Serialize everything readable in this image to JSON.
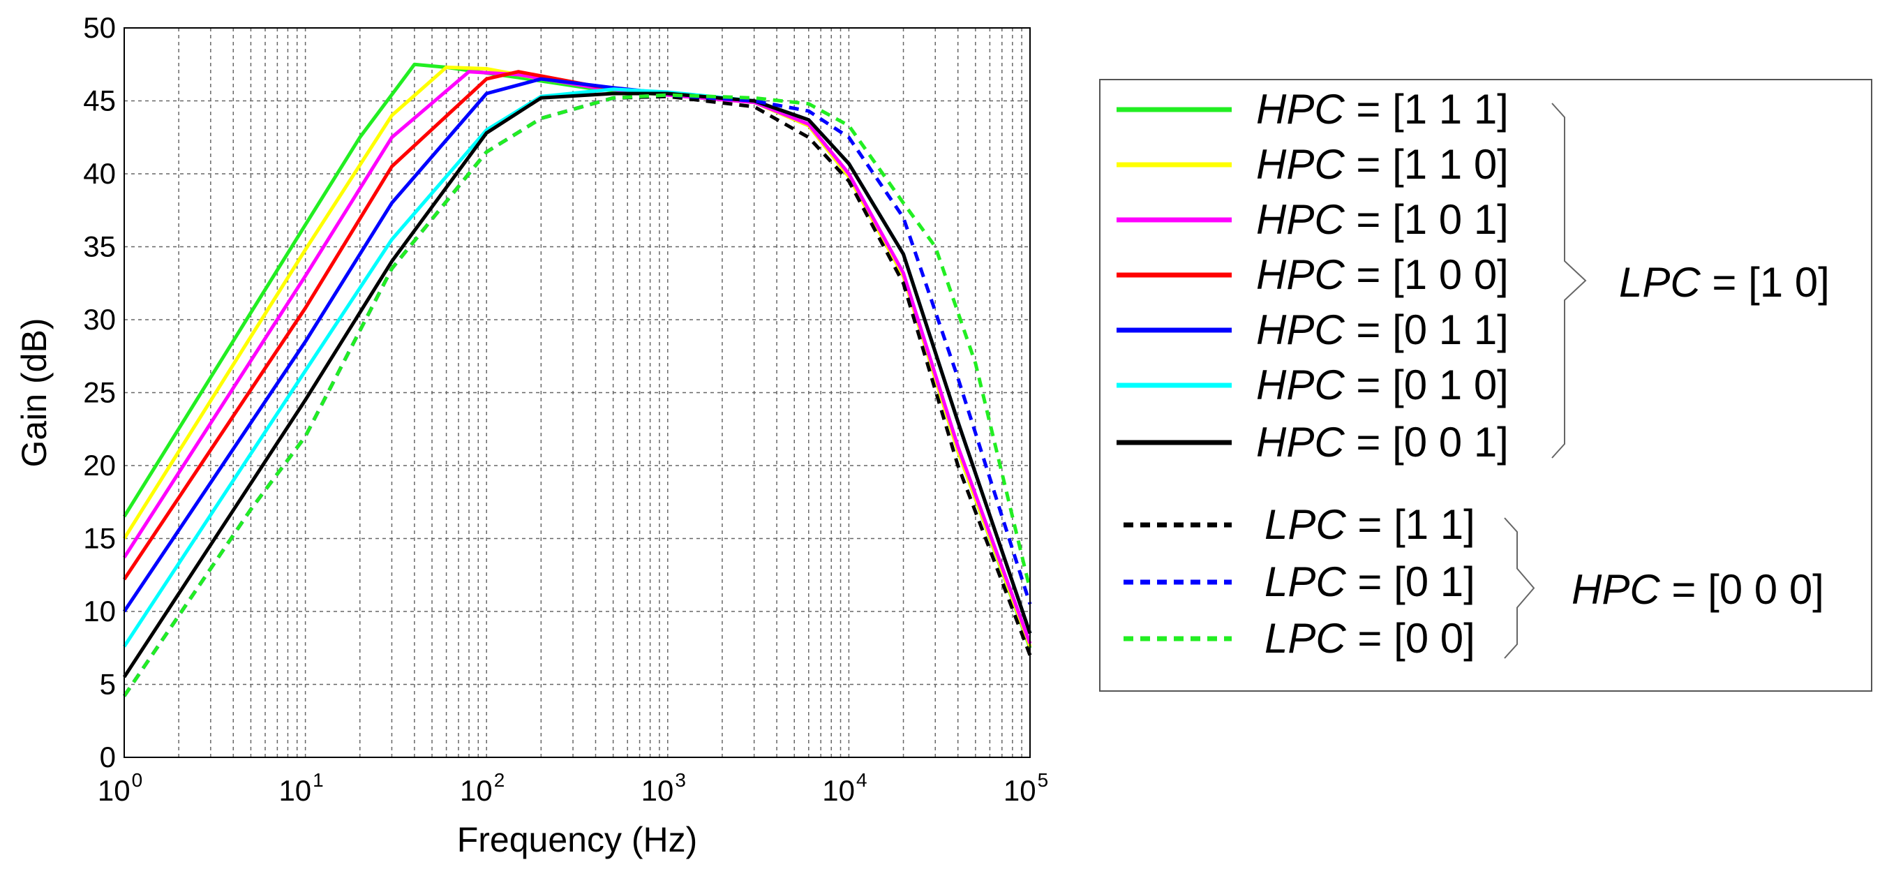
{
  "chart_data": {
    "type": "line",
    "xscale": "log",
    "xlim": [
      1,
      100000
    ],
    "ylim": [
      0,
      50
    ],
    "xlabel": "Frequency (Hz)",
    "ylabel": "Gain (dB)",
    "grid": true,
    "x_ticks": [
      {
        "base": "10",
        "exp": "0"
      },
      {
        "base": "10",
        "exp": "1"
      },
      {
        "base": "10",
        "exp": "2"
      },
      {
        "base": "10",
        "exp": "3"
      },
      {
        "base": "10",
        "exp": "4"
      },
      {
        "base": "10",
        "exp": "5"
      }
    ],
    "y_ticks": [
      0,
      5,
      10,
      15,
      20,
      25,
      30,
      35,
      40,
      45,
      50
    ],
    "series": [
      {
        "name": "HPC = [1 1 1]",
        "color": "#22ee22",
        "dash": "solid",
        "points": [
          [
            1,
            16.5
          ],
          [
            10,
            36.5
          ],
          [
            20,
            42.5
          ],
          [
            40,
            47.5
          ],
          [
            60,
            47.3
          ],
          [
            150,
            46.6
          ],
          [
            400,
            45.8
          ],
          [
            1000,
            45.4
          ],
          [
            3000,
            44.9
          ],
          [
            6000,
            43.3
          ],
          [
            10000,
            39.8
          ],
          [
            20000,
            33.0
          ],
          [
            40000,
            21.0
          ],
          [
            100000,
            7.5
          ]
        ]
      },
      {
        "name": "HPC = [1 1 0]",
        "color": "#ffff00",
        "dash": "solid",
        "points": [
          [
            1,
            15.0
          ],
          [
            10,
            34.8
          ],
          [
            30,
            44.0
          ],
          [
            60,
            47.3
          ],
          [
            100,
            47.2
          ],
          [
            200,
            46.5
          ],
          [
            500,
            45.8
          ],
          [
            1000,
            45.4
          ],
          [
            3000,
            44.9
          ],
          [
            6000,
            43.3
          ],
          [
            10000,
            39.8
          ],
          [
            20000,
            33.0
          ],
          [
            40000,
            21.0
          ],
          [
            100000,
            7.6
          ]
        ]
      },
      {
        "name": "HPC = [1 0 1]",
        "color": "#ff00ff",
        "dash": "solid",
        "points": [
          [
            1,
            13.7
          ],
          [
            10,
            33.0
          ],
          [
            30,
            42.5
          ],
          [
            80,
            47.0
          ],
          [
            150,
            46.8
          ],
          [
            400,
            45.9
          ],
          [
            1000,
            45.4
          ],
          [
            3000,
            44.9
          ],
          [
            6000,
            43.4
          ],
          [
            10000,
            40.0
          ],
          [
            20000,
            33.2
          ],
          [
            40000,
            21.3
          ],
          [
            100000,
            7.8
          ]
        ]
      },
      {
        "name": "HPC = [1 0 0]",
        "color": "#ff0000",
        "dash": "solid",
        "points": [
          [
            1,
            12.2
          ],
          [
            10,
            30.8
          ],
          [
            30,
            40.5
          ],
          [
            100,
            46.5
          ],
          [
            150,
            47.0
          ],
          [
            400,
            46.0
          ],
          [
            1000,
            45.5
          ],
          [
            3000,
            45.0
          ],
          [
            6000,
            43.7
          ],
          [
            10000,
            40.7
          ],
          [
            20000,
            34.5
          ],
          [
            40000,
            23.0
          ],
          [
            100000,
            8.5
          ]
        ]
      },
      {
        "name": "HPC = [0 1 1]",
        "color": "#0000ff",
        "dash": "solid",
        "points": [
          [
            1,
            10.0
          ],
          [
            10,
            28.5
          ],
          [
            30,
            38.0
          ],
          [
            100,
            45.5
          ],
          [
            200,
            46.5
          ],
          [
            500,
            45.9
          ],
          [
            1000,
            45.5
          ],
          [
            3000,
            45.0
          ],
          [
            6000,
            43.7
          ],
          [
            10000,
            40.7
          ],
          [
            20000,
            34.5
          ],
          [
            40000,
            23.0
          ],
          [
            100000,
            8.5
          ]
        ]
      },
      {
        "name": "HPC = [0 1 0]",
        "color": "#00ffff",
        "dash": "solid",
        "points": [
          [
            1,
            7.6
          ],
          [
            10,
            26.5
          ],
          [
            30,
            35.5
          ],
          [
            100,
            43.0
          ],
          [
            200,
            45.3
          ],
          [
            500,
            45.8
          ],
          [
            1000,
            45.6
          ],
          [
            3000,
            45.0
          ],
          [
            6000,
            43.7
          ],
          [
            10000,
            40.7
          ],
          [
            20000,
            34.5
          ],
          [
            40000,
            23.0
          ],
          [
            100000,
            8.5
          ]
        ]
      },
      {
        "name": "HPC = [0 0 1]",
        "color": "#000000",
        "dash": "solid",
        "points": [
          [
            1,
            5.5
          ],
          [
            10,
            24.5
          ],
          [
            30,
            34.0
          ],
          [
            100,
            42.8
          ],
          [
            200,
            45.2
          ],
          [
            500,
            45.5
          ],
          [
            1000,
            45.5
          ],
          [
            3000,
            45.0
          ],
          [
            6000,
            43.7
          ],
          [
            10000,
            40.7
          ],
          [
            20000,
            34.5
          ],
          [
            40000,
            23.0
          ],
          [
            100000,
            8.5
          ]
        ]
      },
      {
        "name": "LPC = [1 1]",
        "color": "#000000",
        "dash": "dashed",
        "points": [
          [
            1,
            4.2
          ],
          [
            5,
            17.0
          ],
          [
            10,
            22.0
          ],
          [
            30,
            33.5
          ],
          [
            100,
            41.5
          ],
          [
            200,
            43.8
          ],
          [
            500,
            45.2
          ],
          [
            1000,
            45.3
          ],
          [
            3000,
            44.6
          ],
          [
            6000,
            42.5
          ],
          [
            10000,
            39.5
          ],
          [
            20000,
            32.5
          ],
          [
            40000,
            20.0
          ],
          [
            100000,
            7.0
          ]
        ]
      },
      {
        "name": "LPC = [0 1]",
        "color": "#0000ff",
        "dash": "dashed",
        "points": [
          [
            1,
            4.2
          ],
          [
            5,
            17.0
          ],
          [
            10,
            22.0
          ],
          [
            30,
            33.5
          ],
          [
            100,
            41.5
          ],
          [
            200,
            43.8
          ],
          [
            500,
            45.2
          ],
          [
            1000,
            45.4
          ],
          [
            3000,
            45.0
          ],
          [
            6000,
            44.3
          ],
          [
            10000,
            42.5
          ],
          [
            20000,
            37.0
          ],
          [
            40000,
            26.0
          ],
          [
            100000,
            10.5
          ]
        ]
      },
      {
        "name": "LPC = [0 0]",
        "color": "#22ee22",
        "dash": "dashed",
        "points": [
          [
            1,
            4.2
          ],
          [
            5,
            17.0
          ],
          [
            10,
            22.0
          ],
          [
            30,
            33.5
          ],
          [
            100,
            41.5
          ],
          [
            200,
            43.8
          ],
          [
            500,
            45.2
          ],
          [
            1000,
            45.4
          ],
          [
            3000,
            45.2
          ],
          [
            6000,
            44.8
          ],
          [
            10000,
            43.3
          ],
          [
            20000,
            38.0
          ],
          [
            30000,
            35.0
          ],
          [
            50000,
            27.0
          ],
          [
            100000,
            11.5
          ]
        ]
      }
    ],
    "legend": {
      "group1": {
        "entries": [
          {
            "var": "HPC",
            "text": " = [1 1 1]",
            "color": "#22ee22",
            "dash": "solid"
          },
          {
            "var": "HPC",
            "text": " = [1 1 0]",
            "color": "#ffff00",
            "dash": "solid"
          },
          {
            "var": "HPC",
            "text": " = [1 0 1]",
            "color": "#ff00ff",
            "dash": "solid"
          },
          {
            "var": "HPC",
            "text": " = [1 0 0]",
            "color": "#ff0000",
            "dash": "solid"
          },
          {
            "var": "HPC",
            "text": " = [0 1 1]",
            "color": "#0000ff",
            "dash": "solid"
          },
          {
            "var": "HPC",
            "text": " = [0 1 0]",
            "color": "#00ffff",
            "dash": "solid"
          },
          {
            "var": "HPC",
            "text": " = [0 0 1]",
            "color": "#000000",
            "dash": "solid"
          }
        ],
        "brace_label": {
          "var": "LPC",
          "text": " = [1 0]"
        }
      },
      "group2": {
        "entries": [
          {
            "var": "LPC",
            "text": " = [1 1]",
            "color": "#000000",
            "dash": "dashed"
          },
          {
            "var": "LPC",
            "text": " = [0 1]",
            "color": "#0000ff",
            "dash": "dashed"
          },
          {
            "var": "LPC",
            "text": " = [0 0]",
            "color": "#22ee22",
            "dash": "dashed"
          }
        ],
        "brace_label": {
          "var": "HPC",
          "text": " = [0 0 0]"
        }
      }
    }
  }
}
